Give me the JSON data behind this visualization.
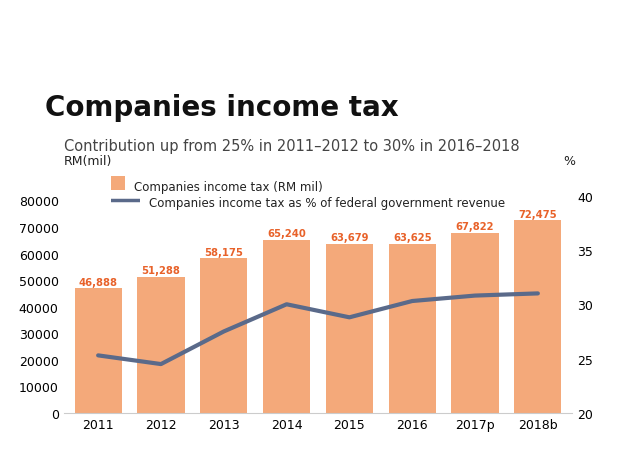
{
  "title": "Companies income tax",
  "subtitle": "Contribution up from 25% in 2011–2012 to 30% in 2016–2018",
  "ylabel_left": "RM(mil)",
  "ylabel_right": "%",
  "categories": [
    "2011",
    "2012",
    "2013",
    "2014",
    "2015",
    "2016",
    "2017p",
    "2018b"
  ],
  "bar_values": [
    46888,
    51288,
    58175,
    65240,
    63679,
    63625,
    67822,
    72475
  ],
  "bar_labels": [
    "46,888",
    "51,288",
    "58,175",
    "65,240",
    "63,679",
    "63,625",
    "67,822",
    "72,475"
  ],
  "bar_color": "#F4A97A",
  "line_pct_values": [
    25.3,
    24.5,
    27.5,
    30.0,
    28.8,
    30.3,
    30.8,
    31.0
  ],
  "line_color": "#5a6a8a",
  "line_width": 3.0,
  "ylim_left": [
    0,
    90000
  ],
  "ylim_right": [
    20,
    42
  ],
  "yticks_left": [
    0,
    10000,
    20000,
    30000,
    40000,
    50000,
    60000,
    70000,
    80000
  ],
  "yticks_right": [
    20,
    25,
    30,
    35,
    40
  ],
  "legend_bar_label": "Companies income tax (RM mil)",
  "legend_line_label": "Companies income tax as % of federal government revenue",
  "title_fontsize": 20,
  "subtitle_fontsize": 10.5,
  "label_color": "#E8622A",
  "tick_fontsize": 9,
  "background_color": "#ffffff"
}
